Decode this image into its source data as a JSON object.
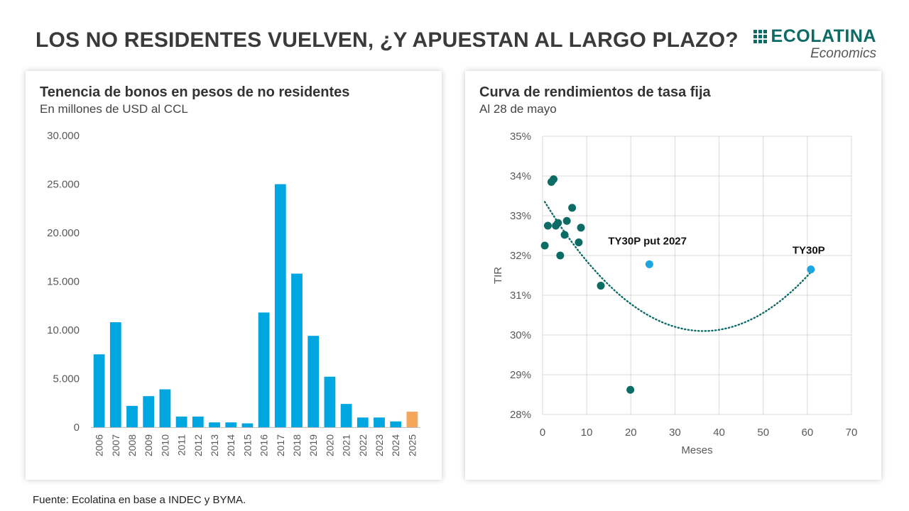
{
  "header": {
    "title": "LOS NO RESIDENTES VUELVEN, ¿Y APUESTAN AL LARGO PLAZO?",
    "logo_word": "ECOLATINA",
    "logo_sub": "Economics"
  },
  "colors": {
    "bar": "#00a6e0",
    "bar_highlight": "#f5a65b",
    "dot": "#0d6b66",
    "dot_highlight": "#1ba6e0",
    "brand": "#0d6b66"
  },
  "footer": {
    "source": "Fuente: Ecolatina en base a INDEC y BYMA."
  },
  "chart_data": [
    {
      "type": "bar",
      "title": "Tenencia de bonos en pesos de no residentes",
      "subtitle": "En millones de USD al CCL",
      "categories": [
        "2006",
        "2007",
        "2008",
        "2009",
        "2010",
        "2011",
        "2012",
        "2013",
        "2014",
        "2015",
        "2016",
        "2017",
        "2018",
        "2019",
        "2020",
        "2021",
        "2022",
        "2023",
        "2024",
        "2025"
      ],
      "values": [
        7500,
        10800,
        2200,
        3200,
        3900,
        1100,
        1100,
        500,
        500,
        400,
        11800,
        25000,
        15800,
        9400,
        5200,
        2400,
        1000,
        1000,
        600,
        1600
      ],
      "highlight_category": "2025",
      "ylim": [
        0,
        30000
      ],
      "yticks": [
        0,
        5000,
        10000,
        15000,
        20000,
        25000,
        30000
      ],
      "ytick_labels": [
        "0",
        "5.000",
        "10.000",
        "15.000",
        "20.000",
        "25.000",
        "30.000"
      ],
      "grid": false
    },
    {
      "type": "scatter",
      "title": "Curva de rendimientos de tasa fija",
      "subtitle": "Al 28 de mayo",
      "xlabel": "Meses",
      "ylabel": "TIR",
      "xlim": [
        0,
        70
      ],
      "ylim": [
        28,
        35
      ],
      "xticks": [
        0,
        10,
        20,
        30,
        40,
        50,
        60,
        70
      ],
      "yticks": [
        28,
        29,
        30,
        31,
        32,
        33,
        34,
        35
      ],
      "ytick_labels": [
        "28%",
        "29%",
        "30%",
        "31%",
        "32%",
        "33%",
        "34%",
        "35%"
      ],
      "grid": true,
      "points": [
        {
          "x": 0.5,
          "y": 32.25
        },
        {
          "x": 1.2,
          "y": 32.75
        },
        {
          "x": 2.0,
          "y": 33.85
        },
        {
          "x": 2.5,
          "y": 33.92
        },
        {
          "x": 3.0,
          "y": 32.75
        },
        {
          "x": 3.5,
          "y": 32.82
        },
        {
          "x": 4.0,
          "y": 32.0
        },
        {
          "x": 5.0,
          "y": 32.52
        },
        {
          "x": 5.5,
          "y": 32.87
        },
        {
          "x": 6.7,
          "y": 33.2
        },
        {
          "x": 8.2,
          "y": 32.33
        },
        {
          "x": 8.7,
          "y": 32.7
        },
        {
          "x": 13.2,
          "y": 31.24
        },
        {
          "x": 19.9,
          "y": 28.62
        }
      ],
      "highlight_points": [
        {
          "x": 24.2,
          "y": 31.78,
          "label": "TY30P put 2027"
        },
        {
          "x": 60.8,
          "y": 31.65,
          "label": "TY30P"
        }
      ],
      "trendline": {
        "type": "polynomial",
        "x_start": 0.5,
        "x_end": 60.8,
        "y_start": 33.35,
        "vertex_x": 36.5,
        "vertex_y": 30.1,
        "style": "dotted"
      }
    }
  ]
}
